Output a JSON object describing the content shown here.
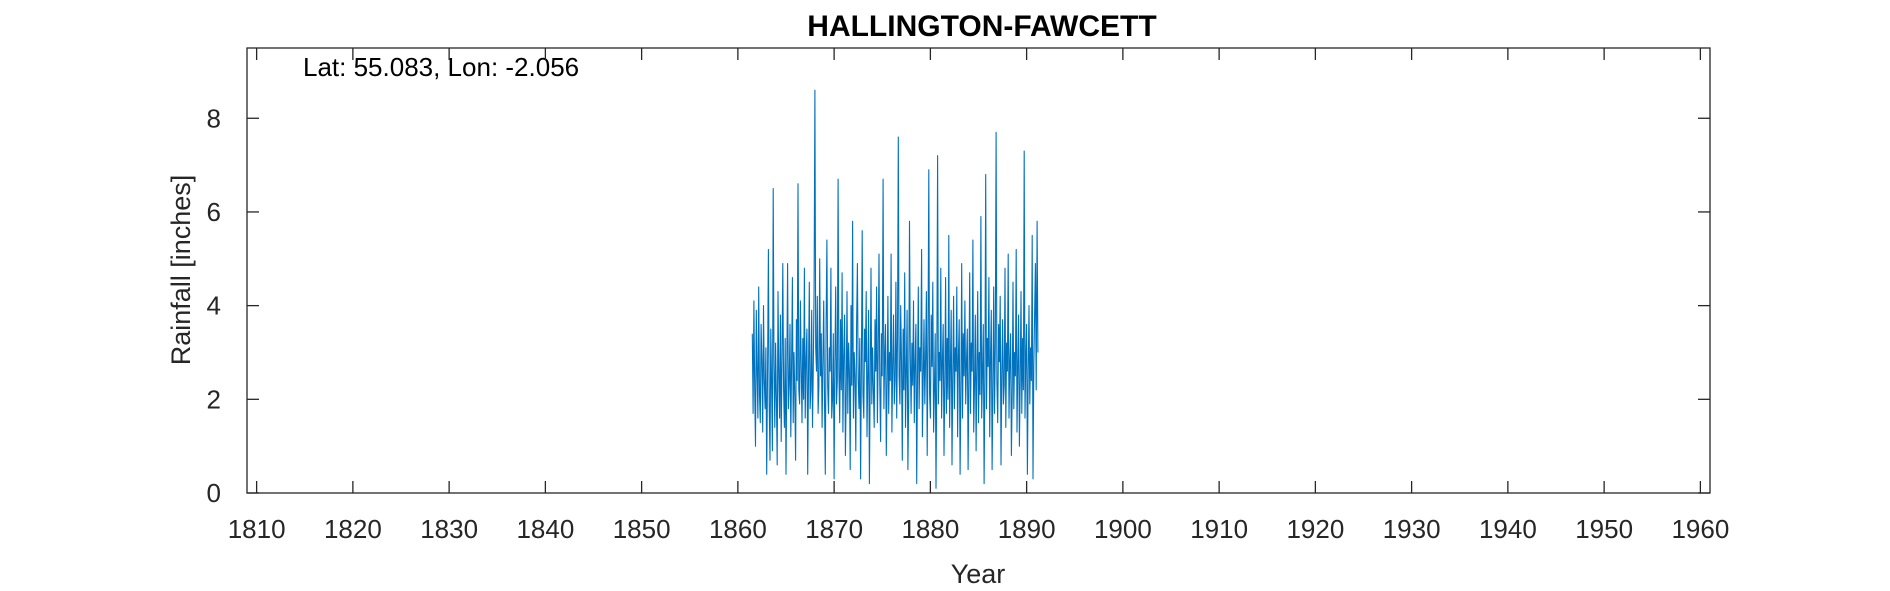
{
  "chart_data": {
    "type": "line",
    "title": "HALLINGTON-FAWCETT",
    "annotation": "Lat: 55.083, Lon: -2.056",
    "xlabel": "Year",
    "ylabel": "Rainfall [inches]",
    "xlim": [
      1809,
      1961
    ],
    "ylim": [
      0,
      9.5
    ],
    "xticks": [
      1810,
      1820,
      1830,
      1840,
      1850,
      1860,
      1870,
      1880,
      1890,
      1900,
      1910,
      1920,
      1930,
      1940,
      1950,
      1960
    ],
    "yticks": [
      0,
      2,
      4,
      6,
      8
    ],
    "grid": false,
    "series": [
      {
        "color": "#0072bd",
        "x_start": 1861.5,
        "x_step": 0.0833333,
        "values": [
          3.4,
          1.7,
          4.1,
          2.2,
          1.0,
          3.9,
          2.6,
          1.6,
          4.4,
          2.1,
          1.5,
          3.6,
          2.8,
          1.3,
          4.0,
          2.4,
          1.8,
          3.1,
          0.4,
          2.7,
          5.2,
          1.9,
          0.7,
          3.5,
          2.3,
          0.9,
          6.5,
          2.8,
          1.4,
          3.2,
          2.0,
          0.6,
          4.3,
          2.5,
          1.6,
          3.8,
          1.1,
          2.9,
          4.9,
          2.2,
          1.4,
          3.3,
          0.4,
          2.6,
          4.9,
          1.8,
          2.3,
          3.6,
          1.2,
          2.8,
          4.6,
          1.5,
          3.0,
          2.1,
          0.7,
          3.7,
          2.4,
          6.6,
          2.2,
          1.9,
          4.1,
          2.7,
          1.5,
          3.3,
          2.0,
          4.8,
          1.6,
          2.9,
          3.5,
          0.4,
          2.5,
          4.5,
          1.8,
          2.2,
          3.9,
          1.4,
          2.7,
          4.4,
          8.6,
          3.1,
          2.6,
          4.2,
          1.7,
          2.3,
          5.0,
          2.5,
          3.4,
          1.4,
          2.8,
          4.1,
          2.0,
          0.4,
          3.6,
          5.4,
          2.3,
          1.7,
          3.1,
          2.6,
          4.8,
          1.6,
          2.0,
          3.4,
          0.3,
          2.8,
          4.4,
          1.9,
          2.4,
          6.7,
          2.6,
          1.5,
          3.7,
          2.2,
          4.7,
          1.3,
          2.9,
          3.8,
          0.8,
          2.1,
          4.3,
          1.7,
          3.2,
          2.6,
          0.5,
          4.0,
          2.3,
          5.8,
          1.6,
          3.0,
          2.5,
          0.9,
          3.6,
          4.9,
          2.4,
          1.8,
          3.3,
          0.3,
          2.7,
          5.6,
          2.1,
          1.6,
          3.5,
          2.8,
          4.3,
          1.2,
          2.5,
          3.9,
          0.2,
          2.4,
          4.8,
          1.9,
          3.1,
          2.2,
          1.4,
          3.7,
          2.6,
          4.4,
          1.5,
          3.0,
          5.1,
          2.3,
          1.1,
          3.4,
          2.5,
          6.7,
          1.8,
          2.9,
          3.6,
          0.8,
          2.3,
          4.2,
          1.7,
          3.0,
          2.4,
          5.1,
          1.3,
          2.7,
          3.8,
          1.9,
          2.4,
          4.5,
          1.6,
          3.3,
          7.6,
          2.5,
          1.9,
          4.0,
          2.8,
          0.7,
          3.5,
          2.2,
          4.7,
          1.4,
          2.6,
          3.9,
          0.5,
          2.0,
          5.8,
          2.9,
          1.7,
          3.2,
          2.3,
          4.1,
          1.5,
          2.8,
          3.6,
          0.2,
          2.5,
          4.4,
          1.8,
          3.1,
          2.6,
          5.2,
          1.2,
          2.4,
          3.7,
          1.9,
          2.9,
          4.3,
          0.8,
          3.2,
          6.9,
          2.1,
          1.6,
          3.8,
          2.7,
          4.5,
          1.3,
          2.2,
          3.4,
          0.1,
          2.6,
          7.2,
          1.9,
          3.0,
          2.4,
          4.8,
          1.6,
          2.8,
          3.6,
          0.8,
          2.3,
          4.6,
          1.7,
          3.3,
          2.0,
          5.5,
          1.4,
          2.7,
          3.9,
          0.6,
          2.5,
          4.2,
          1.8,
          3.1,
          2.6,
          4.4,
          1.2,
          2.9,
          3.7,
          0.4,
          2.2,
          4.9,
          1.6,
          3.4,
          2.5,
          4.1,
          1.9,
          2.8,
          3.5,
          0.5,
          2.4,
          4.7,
          1.7,
          3.2,
          2.6,
          5.4,
          1.3,
          2.3,
          3.8,
          0.9,
          2.7,
          4.3,
          1.5,
          3.0,
          2.1,
          5.9,
          1.6,
          2.6,
          3.6,
          0.2,
          2.4,
          6.8,
          1.8,
          3.3,
          2.7,
          4.6,
          1.2,
          2.9,
          3.9,
          0.5,
          2.2,
          4.4,
          1.7,
          3.1,
          7.7,
          2.4,
          1.5,
          3.6,
          2.8,
          4.2,
          0.6,
          2.5,
          3.7,
          1.9,
          2.3,
          4.8,
          1.4,
          3.2,
          2.6,
          5.1,
          1.6,
          2.8,
          3.4,
          0.8,
          2.1,
          4.5,
          1.8,
          3.0,
          2.5,
          5.2,
          1.3,
          2.7,
          3.8,
          1.0,
          2.4,
          4.3,
          1.7,
          3.3,
          2.2,
          7.3,
          1.6,
          2.9,
          3.6,
          0.4,
          2.6,
          4.0,
          1.9,
          3.1,
          2.4,
          5.5,
          0.3,
          2.7,
          3.8,
          4.9,
          2.2,
          5.8,
          3.0
        ]
      }
    ]
  }
}
